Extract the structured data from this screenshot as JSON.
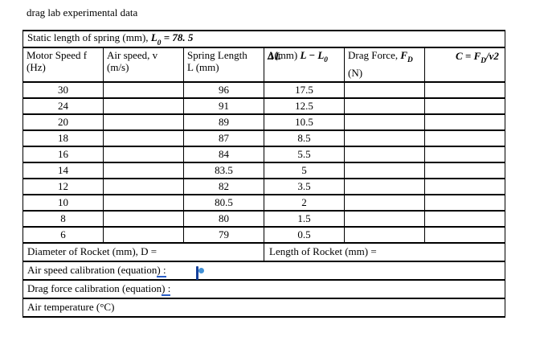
{
  "title": "drag lab experimental data",
  "caption": {
    "text": "Static length of spring (mm),",
    "symbol": " L",
    "symbol_sub": "0",
    "value": " = 78. 5"
  },
  "table": {
    "columns": [
      {
        "line1": "Motor Speed f",
        "line2": "(Hz)"
      },
      {
        "line1": "Air speed, v",
        "line2": "(m/s)"
      },
      {
        "line1": "Spring Length",
        "line2": "L (mm)"
      },
      {
        "base": "Δ(mm)",
        "overlay": "ΔL",
        "math": " L − L",
        "math_sub": "0"
      },
      {
        "line1_prefix": "Drag Force, ",
        "line1_math": "F",
        "line1_sub": "D",
        "line2": "(N)"
      },
      {
        "math": "C = F",
        "sub": "D",
        "suffix": "/v2"
      }
    ],
    "rows": [
      [
        "30",
        "",
        "96",
        "17.5",
        "",
        ""
      ],
      [
        "24",
        "",
        "91",
        "12.5",
        "",
        ""
      ],
      [
        "20",
        "",
        "89",
        "10.5",
        "",
        ""
      ],
      [
        "18",
        "",
        "87",
        "8.5",
        "",
        ""
      ],
      [
        "16",
        "",
        "84",
        "5.5",
        "",
        ""
      ],
      [
        "14",
        "",
        "83.5",
        "5",
        "",
        ""
      ],
      [
        "12",
        "",
        "82",
        "3.5",
        "",
        ""
      ],
      [
        "10",
        "",
        "80.5",
        "2",
        "",
        ""
      ],
      [
        "8",
        "",
        "80",
        "1.5",
        "",
        ""
      ],
      [
        "6",
        "",
        "79",
        "0.5",
        "",
        ""
      ]
    ],
    "footer": {
      "diameter_label": "Diameter of Rocket (mm), D =",
      "length_label": "Length of Rocket (mm) =",
      "air_speed_cal": "Air speed calibration (equation",
      "air_speed_cal_underlined": ") :",
      "drag_force_cal": "Drag force calibration (equation",
      "drag_force_cal_underlined": ") :",
      "air_temp": "Air temperature (°C)"
    }
  },
  "colors": {
    "underline_blue": "#2b5fc7",
    "cursor_bar_blue": "#16419c",
    "cursor_dot_blue": "#4191d6",
    "text": "#000000",
    "background": "#ffffff"
  }
}
